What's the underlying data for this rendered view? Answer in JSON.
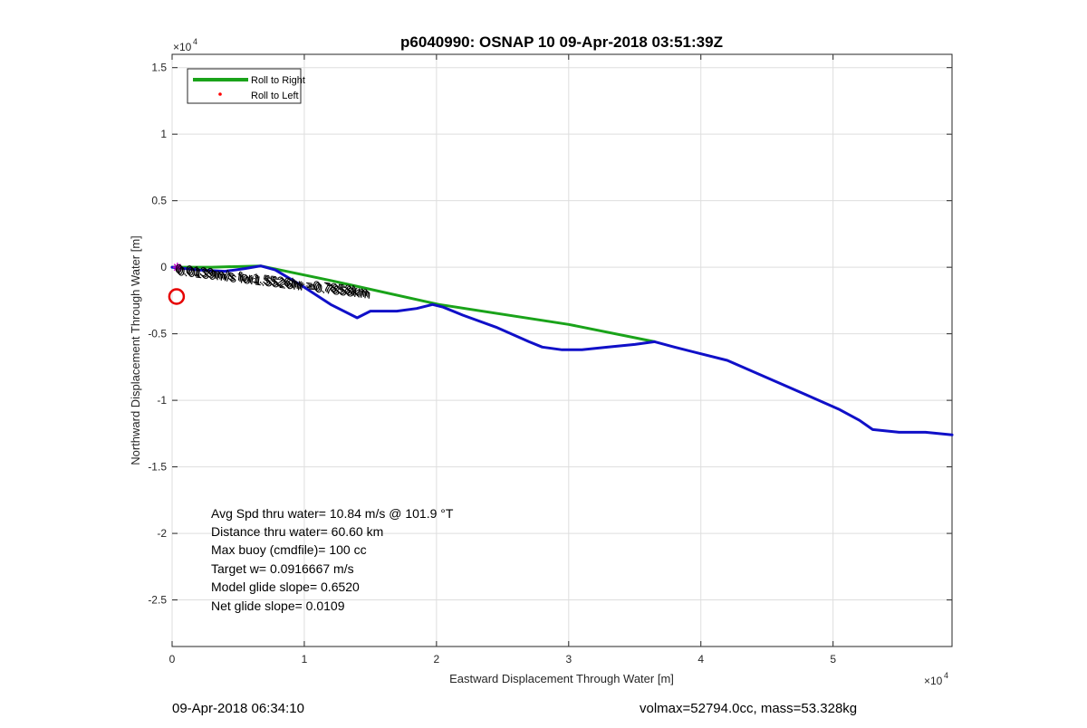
{
  "chart_data": {
    "type": "line",
    "title": "p6040990: OSNAP 10 09-Apr-2018 03:51:39Z",
    "xlabel": "Eastward Displacement Through Water [m]",
    "ylabel": "Northward Displacement Through Water [m]",
    "x_exponent_label": "×10",
    "x_exponent": "4",
    "y_exponent_label": "×10",
    "y_exponent": "4",
    "xlim": [
      0,
      5.9
    ],
    "ylim": [
      -2.85,
      1.6
    ],
    "x_ticks": [
      0,
      1,
      2,
      3,
      4,
      5
    ],
    "x_tick_labels": [
      "0",
      "1",
      "2",
      "3",
      "4",
      "5"
    ],
    "y_ticks": [
      1.5,
      1,
      0.5,
      0,
      -0.5,
      -1,
      -1.5,
      -2,
      -2.5
    ],
    "y_tick_labels": [
      "1.5",
      "1",
      "0.5",
      "0",
      "-0.5",
      "-1",
      "-1.5",
      "-2",
      "-2.5"
    ],
    "grid": true,
    "legend_position": "top-left",
    "legend": [
      {
        "label": "Roll to Right",
        "marker": "line",
        "color": "#1aa31a"
      },
      {
        "label": "Roll to Left",
        "marker": "dot",
        "color": "#ff0000"
      }
    ],
    "series": [
      {
        "name": "Roll to Right",
        "color": "#1aa31a",
        "x": [
          0.0,
          0.3,
          0.67,
          1.2,
          2.02,
          3.0,
          3.65
        ],
        "y": [
          0.0,
          0.0,
          0.01,
          -0.1,
          -0.28,
          -0.43,
          -0.56
        ]
      },
      {
        "name": "",
        "color": "#1010c8",
        "x": [
          0.0,
          0.2,
          0.4,
          0.55,
          0.67,
          0.78,
          1.0,
          1.2,
          1.4,
          1.5,
          1.7,
          1.85,
          1.97,
          2.05,
          2.2,
          2.45,
          2.7,
          2.8,
          2.95,
          3.1,
          3.3,
          3.5,
          3.65,
          3.8,
          4.0,
          4.2,
          4.5,
          4.8,
          5.05,
          5.2,
          5.3,
          5.5,
          5.7,
          5.9
        ],
        "y": [
          0.0,
          -0.02,
          -0.03,
          -0.01,
          0.01,
          -0.02,
          -0.15,
          -0.28,
          -0.38,
          -0.33,
          -0.33,
          -0.31,
          -0.28,
          -0.3,
          -0.36,
          -0.45,
          -0.56,
          -0.6,
          -0.62,
          -0.62,
          -0.6,
          -0.58,
          -0.56,
          -0.6,
          -0.65,
          -0.7,
          -0.83,
          -0.96,
          -1.07,
          -1.15,
          -1.22,
          -1.24,
          -1.24,
          -1.26
        ]
      }
    ],
    "markers": [
      {
        "type": "circle",
        "x": 0.02,
        "y": -0.22,
        "color": "#e60000"
      },
      {
        "type": "star",
        "x": 0.04,
        "y": 0.0,
        "color": "#cc00cc"
      }
    ],
    "annotations": [
      {
        "text": "0.0139m/s for1.5526hr =0.7858km",
        "x": 0.02,
        "y": -0.04,
        "rotation_deg": 7
      },
      {
        "text": "0.0139m/s for1.5526hr =0.7858km",
        "x": 0.03,
        "y": -0.05,
        "rotation_deg": 7
      },
      {
        "text": "0.0139m/s for1.5526hr =0.7858km",
        "x": 0.04,
        "y": -0.06,
        "rotation_deg": 7
      }
    ],
    "stats": [
      "Avg Spd thru water= 10.84 m/s @ 101.9 °T",
      "Distance thru water= 60.60 km",
      "Max buoy (cmdfile)= 100 cc",
      "Target w= 0.0916667 m/s",
      "Model glide slope= 0.6520",
      "Net glide slope= 0.0109"
    ]
  },
  "footer": {
    "left": "09-Apr-2018 06:34:10",
    "right": "volmax=52794.0cc, mass=53.328kg"
  }
}
